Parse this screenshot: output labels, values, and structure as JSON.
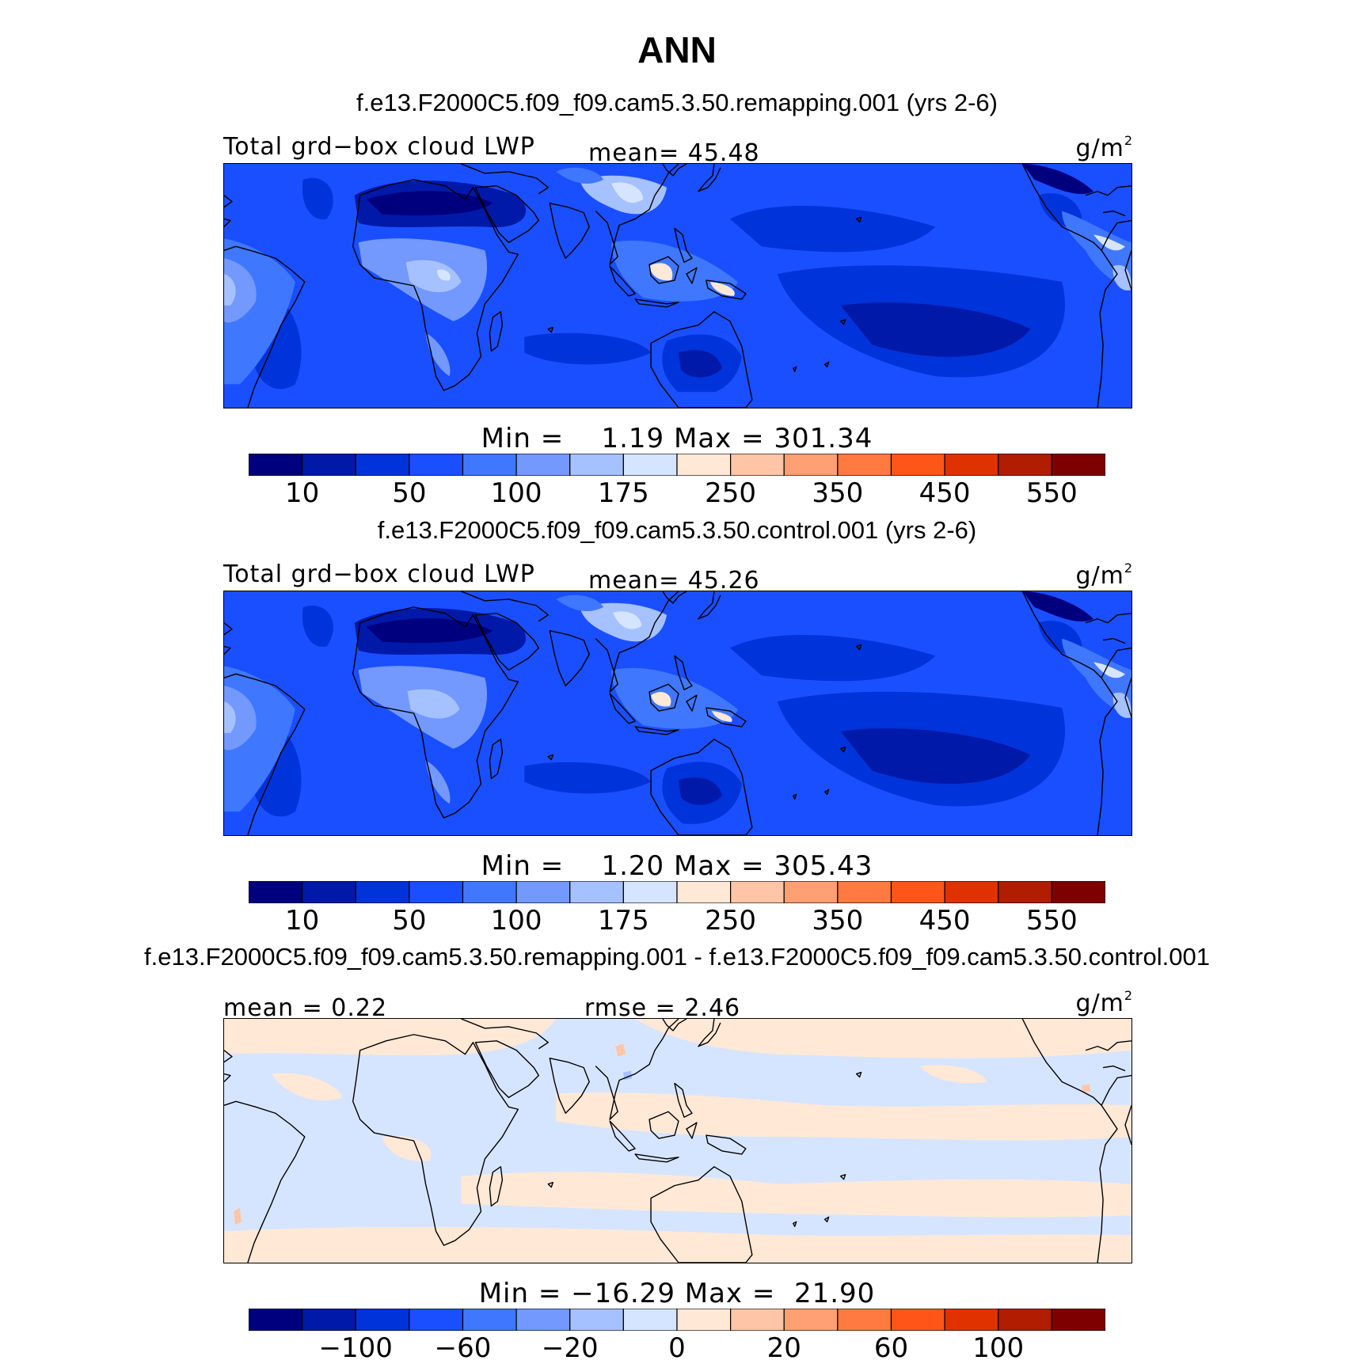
{
  "title": "ANN",
  "colors": [
    "#00007f",
    "#0019a8",
    "#0033d9",
    "#1a4fff",
    "#3f77ff",
    "#7399ff",
    "#a6c1ff",
    "#d6e5ff",
    "#ffe8d6",
    "#ffc5a6",
    "#ff9f73",
    "#ff7a40",
    "#ff5519",
    "#e03200",
    "#b01d00",
    "#7f0000"
  ],
  "panels": [
    {
      "subtitle": "f.e13.F2000C5.f09_f09.cam5.3.50.remapping.001 (yrs 2-6)",
      "left_label": "Total grd−box cloud LWP",
      "mid_label": "mean=  45.48",
      "unit": "g/m",
      "unit_exp": "2",
      "minmax": "Min =    1.19 Max = 301.34",
      "ticks": [
        "10",
        "50",
        "100",
        "175",
        "250",
        "350",
        "450",
        "550"
      ]
    },
    {
      "subtitle": "f.e13.F2000C5.f09_f09.cam5.3.50.control.001 (yrs 2-6)",
      "left_label": "Total grd−box cloud LWP",
      "mid_label": "mean=  45.26",
      "unit": "g/m",
      "unit_exp": "2",
      "minmax": "Min =    1.20 Max = 305.43",
      "ticks": [
        "10",
        "50",
        "100",
        "175",
        "250",
        "350",
        "450",
        "550"
      ]
    },
    {
      "subtitle": "f.e13.F2000C5.f09_f09.cam5.3.50.remapping.001 - f.e13.F2000C5.f09_f09.cam5.3.50.control.001",
      "left_label": "mean =   0.22",
      "mid_label": "rmse =   2.46",
      "unit": "g/m",
      "unit_exp": "2",
      "minmax": "Min = −16.29 Max =  21.90",
      "ticks": [
        "−100",
        "−60",
        "−20",
        "0",
        "20",
        "60",
        "100"
      ]
    }
  ]
}
